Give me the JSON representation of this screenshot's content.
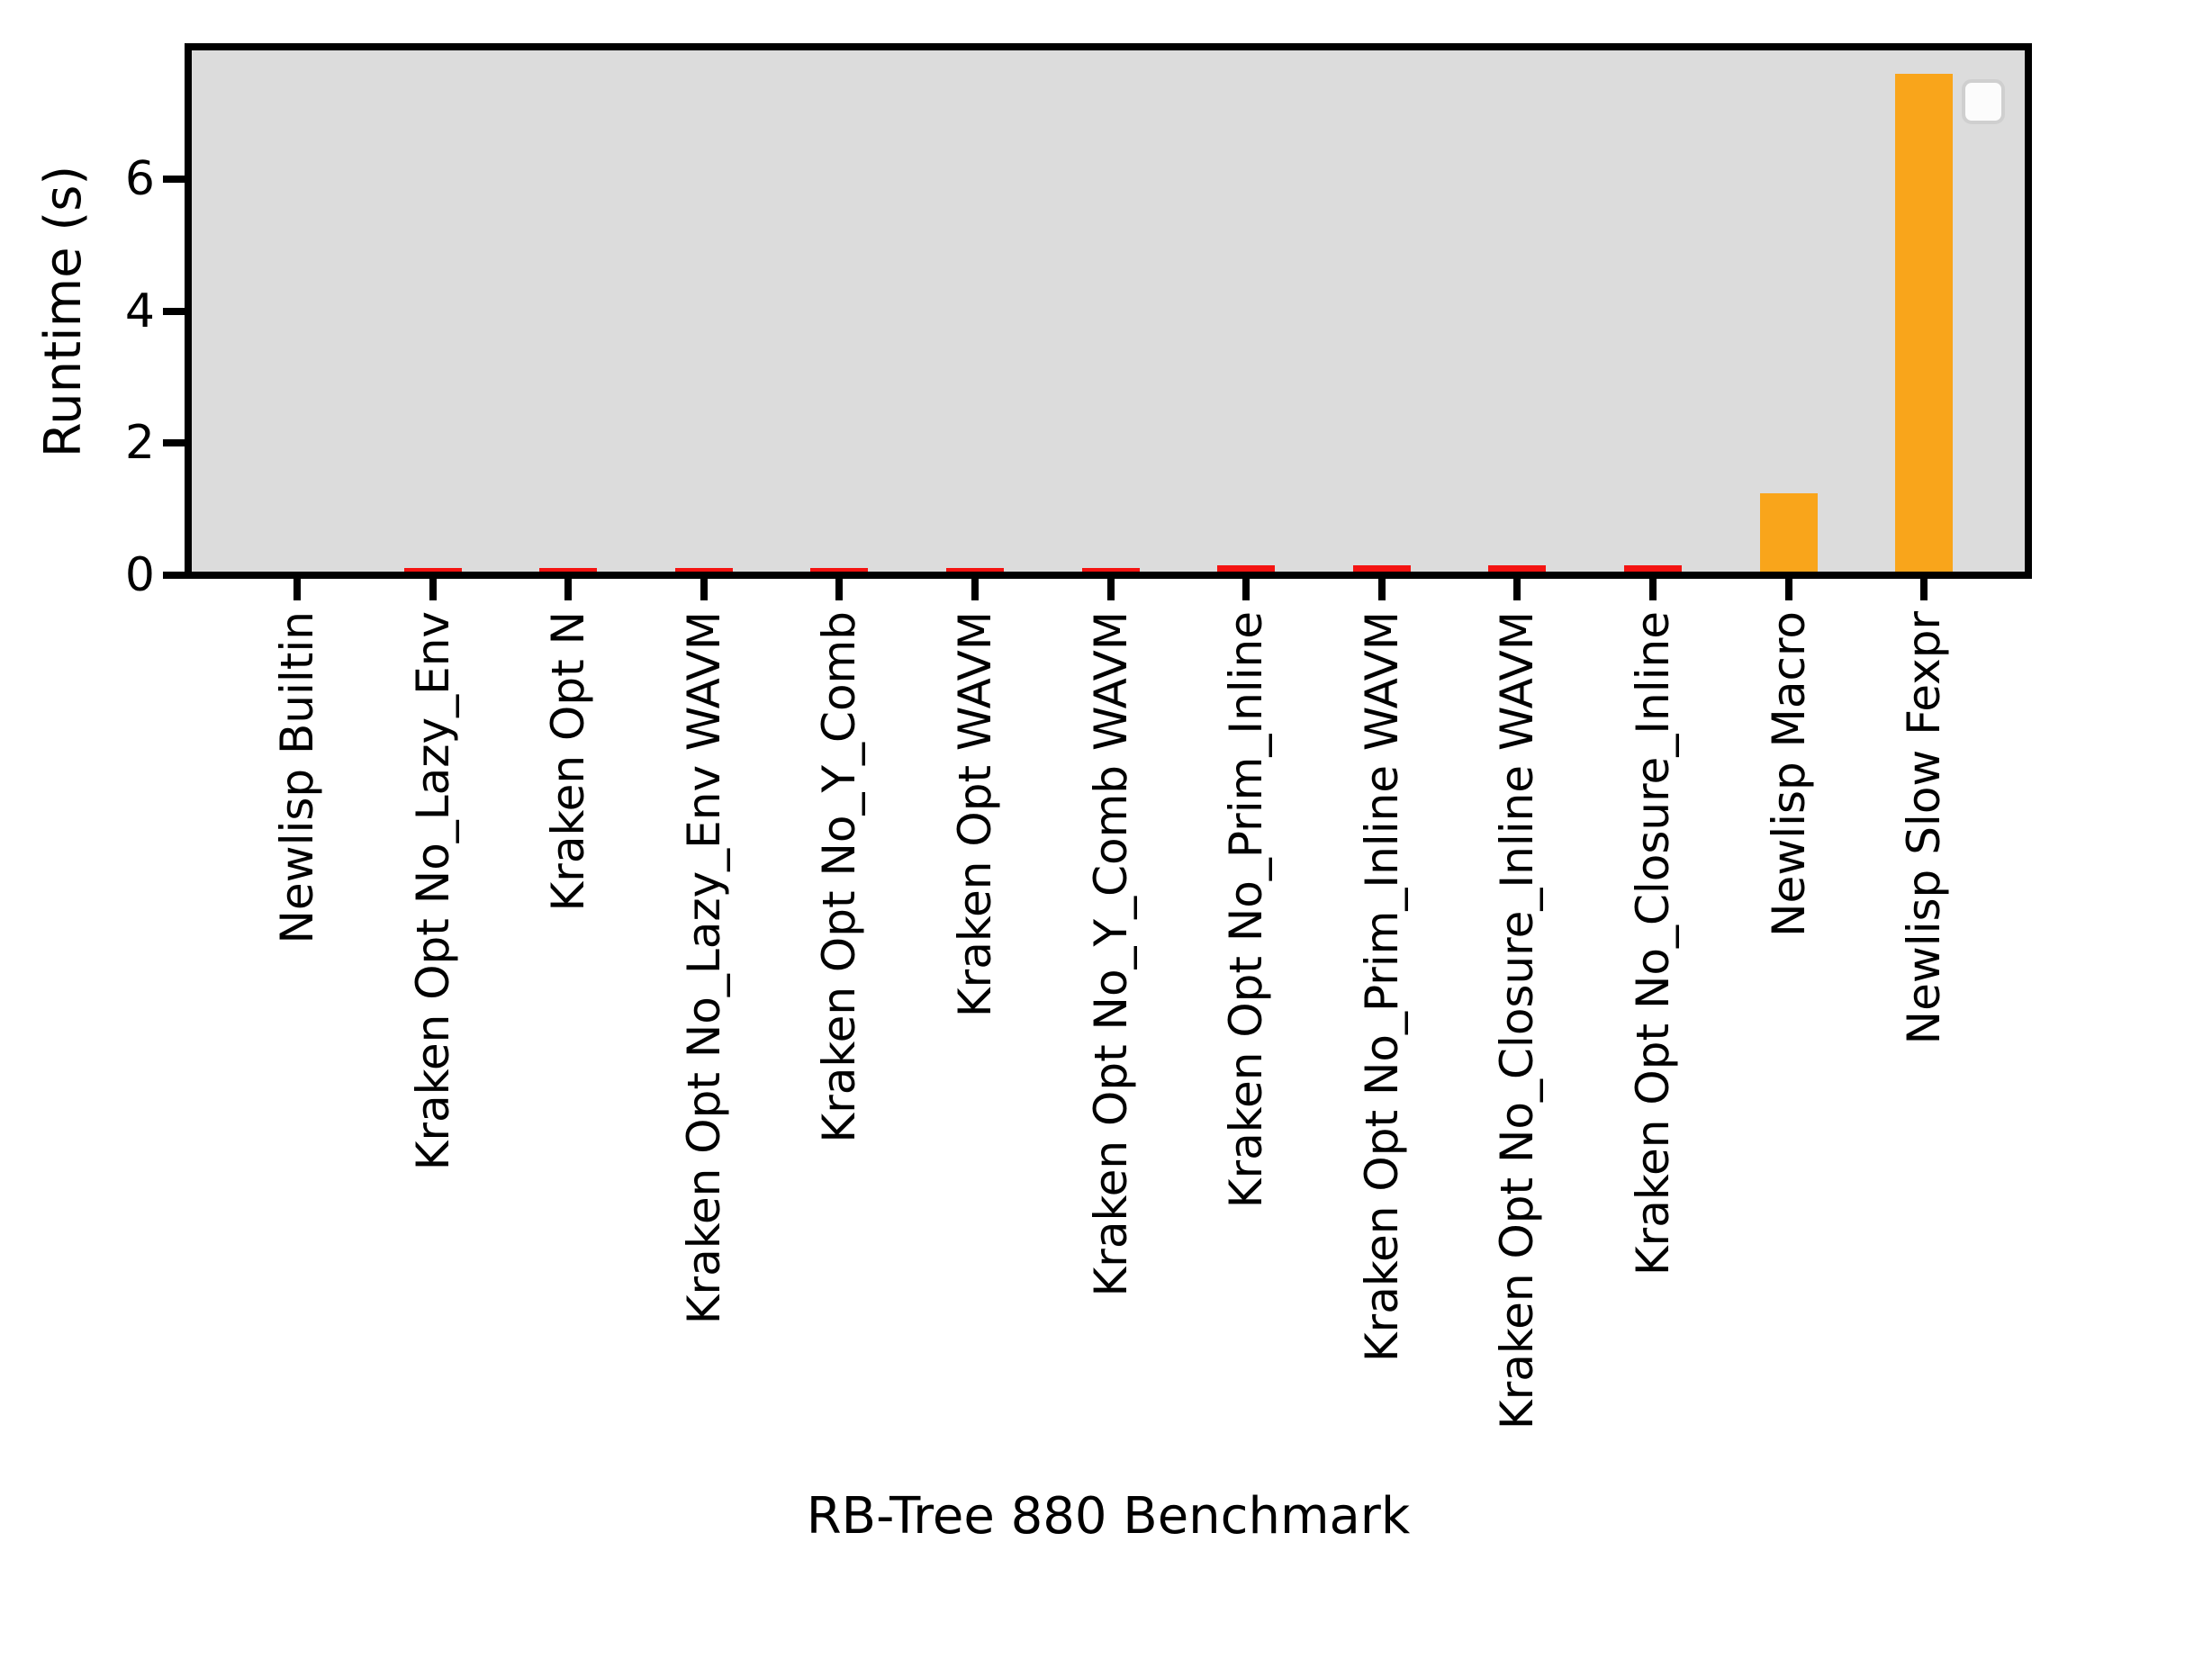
{
  "figure": {
    "background": "#ffffff",
    "plot_background": "#dcdcdc",
    "spine_color": "#000000",
    "tick_color": "#000000"
  },
  "legend": {
    "present": true,
    "entries": [],
    "fill": "#fcfcfc",
    "border": "#cfcfcf"
  },
  "chart_data": {
    "type": "bar",
    "title": "",
    "xlabel": "RB-Tree 880 Benchmark",
    "ylabel": "Runtime (s)",
    "categories": [
      "Newlisp Builtin",
      "Kraken Opt No_Lazy_Env",
      "Kraken Opt N",
      "Kraken Opt No_Lazy_Env WAVM",
      "Kraken Opt No_Y_Comb",
      "Kraken Opt WAVM",
      "Kraken Opt No_Y_Comb WAVM",
      "Kraken Opt No_Prim_Inline",
      "Kraken Opt No_Prim_Inline WAVM",
      "Kraken Opt No_Closure_Inline WAVM",
      "Kraken Opt No_Closure_Inline",
      "Newlisp Macro",
      "Newlisp Slow Fexpr"
    ],
    "values": [
      0.005,
      0.05,
      0.05,
      0.06,
      0.06,
      0.06,
      0.06,
      0.09,
      0.09,
      0.095,
      0.095,
      1.19,
      7.54
    ],
    "bar_colors": [
      "#f41412",
      "#f41412",
      "#f41412",
      "#f41412",
      "#f41412",
      "#f41412",
      "#f41412",
      "#f41412",
      "#f41412",
      "#f41412",
      "#f41412",
      "#f9a51b",
      "#f9a51b"
    ],
    "yticks": [
      0,
      2,
      4,
      6
    ],
    "ylim": [
      0,
      7.9
    ],
    "grid": false,
    "legend_position": "upper right",
    "x_tick_rotation": 90
  }
}
